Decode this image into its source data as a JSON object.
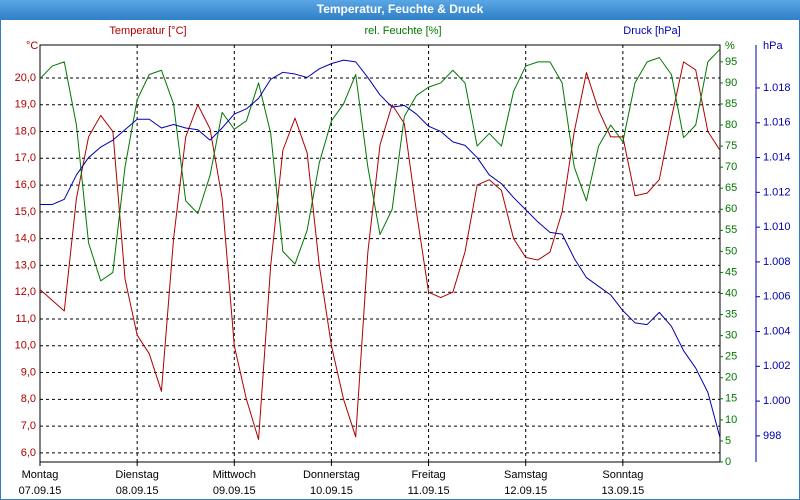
{
  "chart_data": {
    "type": "line",
    "title": "Temperatur, Feuchte & Druck",
    "y_label": "Temperatur [°C]",
    "y_unit": "°C",
    "y2_label": "rel. Feuchte [%]",
    "y2_unit": "%",
    "y3_label": "Druck [hPa]",
    "y3_unit": "hPa",
    "grid": true,
    "xlim": [
      0,
      7
    ],
    "xticks": [
      {
        "value": 0,
        "label": "Montag",
        "sublabel": "07.09.15"
      },
      {
        "value": 1,
        "label": "Dienstag",
        "sublabel": "08.09.15"
      },
      {
        "value": 2,
        "label": "Mittwoch",
        "sublabel": "09.09.15"
      },
      {
        "value": 3,
        "label": "Donnerstag",
        "sublabel": "10.09.15"
      },
      {
        "value": 4,
        "label": "Freitag",
        "sublabel": "11.09.15"
      },
      {
        "value": 5,
        "label": "Samstag",
        "sublabel": "12.09.15"
      },
      {
        "value": 6,
        "label": "Sonntag",
        "sublabel": "13.09.15"
      }
    ],
    "ylim": [
      5.66,
      21.23
    ],
    "yticks": [
      {
        "value": 6,
        "label": "6,0"
      },
      {
        "value": 7,
        "label": "7,0"
      },
      {
        "value": 8,
        "label": "8,0"
      },
      {
        "value": 9,
        "label": "9,0"
      },
      {
        "value": 10,
        "label": "10,0"
      },
      {
        "value": 11,
        "label": "11,0"
      },
      {
        "value": 12,
        "label": "12,0"
      },
      {
        "value": 13,
        "label": "13,0"
      },
      {
        "value": 14,
        "label": "14,0"
      },
      {
        "value": 15,
        "label": "15,0"
      },
      {
        "value": 16,
        "label": "16,0"
      },
      {
        "value": 17,
        "label": "17,0"
      },
      {
        "value": 18,
        "label": "18,0"
      },
      {
        "value": 19,
        "label": "19,0"
      },
      {
        "value": 20,
        "label": "20,0"
      }
    ],
    "y2lim": [
      0,
      99
    ],
    "y2ticks": [
      0,
      5,
      10,
      15,
      20,
      25,
      30,
      35,
      40,
      45,
      50,
      55,
      60,
      65,
      70,
      75,
      80,
      85,
      90,
      95
    ],
    "y3lim": [
      996.5,
      1020.47
    ],
    "y3ticks": [
      998,
      {
        "value": 1000,
        "label": "1.000"
      },
      {
        "value": 1002,
        "label": "1.002"
      },
      {
        "value": 1004,
        "label": "1.004"
      },
      {
        "value": 1006,
        "label": "1.006"
      },
      {
        "value": 1008,
        "label": "1.008"
      },
      {
        "value": 1010,
        "label": "1.010"
      },
      {
        "value": 1012,
        "label": "1.012"
      },
      {
        "value": 1014,
        "label": "1.014"
      },
      {
        "value": 1016,
        "label": "1.016"
      },
      {
        "value": 1018,
        "label": "1.018"
      }
    ],
    "x": [
      0,
      0.125,
      0.25,
      0.375,
      0.5,
      0.625,
      0.75,
      0.875,
      1,
      1.125,
      1.25,
      1.375,
      1.5,
      1.625,
      1.75,
      1.875,
      2,
      2.125,
      2.25,
      2.375,
      2.5,
      2.625,
      2.75,
      2.875,
      3,
      3.125,
      3.25,
      3.375,
      3.5,
      3.625,
      3.75,
      3.875,
      4,
      4.125,
      4.25,
      4.375,
      4.5,
      4.625,
      4.75,
      4.875,
      5,
      5.125,
      5.25,
      5.375,
      5.5,
      5.625,
      5.75,
      5.875,
      6,
      6.125,
      6.25,
      6.375,
      6.5,
      6.625,
      6.75,
      6.875,
      7
    ],
    "series": [
      {
        "name": "Temperatur",
        "color": "#b00000",
        "axis": "y",
        "values": [
          12.1,
          11.7,
          11.3,
          15.5,
          17.8,
          18.6,
          18.0,
          12.5,
          10.4,
          9.7,
          8.3,
          14.0,
          17.8,
          19.0,
          18.1,
          15.5,
          10.0,
          8.0,
          6.5,
          13.0,
          17.3,
          18.5,
          17.2,
          13.0,
          10.0,
          8.0,
          6.6,
          13.5,
          17.5,
          19.0,
          18.3,
          15.0,
          12.0,
          11.8,
          12.0,
          13.5,
          16.0,
          16.2,
          15.8,
          14.0,
          13.3,
          13.2,
          13.5,
          15.0,
          18.0,
          20.2,
          18.8,
          17.8,
          17.8,
          15.6,
          15.7,
          16.2,
          18.5,
          20.6,
          20.3,
          18.0,
          17.3
        ]
      },
      {
        "name": "rel. Feuchte",
        "color": "#007800",
        "axis": "y2",
        "values": [
          91,
          94,
          95,
          80,
          52,
          43,
          45,
          70,
          86,
          92,
          93,
          85,
          62,
          59,
          68,
          83,
          79,
          81,
          90,
          78,
          50,
          47,
          55,
          71,
          81,
          85,
          92,
          70,
          54,
          60,
          82,
          87,
          89,
          90,
          93,
          90,
          75,
          78,
          75,
          88,
          94,
          95,
          95,
          90,
          70,
          62,
          75,
          80,
          76,
          90,
          95,
          96,
          92,
          77,
          80,
          95,
          98
        ]
      },
      {
        "name": "Druck",
        "color": "#0000b0",
        "axis": "y3",
        "values": [
          1011.3,
          1011.3,
          1011.6,
          1013.0,
          1014.0,
          1014.6,
          1015.0,
          1015.6,
          1016.2,
          1016.2,
          1015.7,
          1015.9,
          1015.7,
          1015.6,
          1015.0,
          1015.7,
          1016.5,
          1016.8,
          1017.4,
          1018.5,
          1018.9,
          1018.8,
          1018.6,
          1019.1,
          1019.4,
          1019.6,
          1019.5,
          1018.6,
          1017.6,
          1016.9,
          1017.0,
          1016.5,
          1015.8,
          1015.5,
          1014.9,
          1014.7,
          1014.0,
          1013.0,
          1012.5,
          1011.7,
          1011.0,
          1010.3,
          1009.7,
          1009.6,
          1008.2,
          1007.1,
          1006.6,
          1006.1,
          1005.2,
          1004.5,
          1004.4,
          1005.1,
          1004.3,
          1002.9,
          1001.9,
          1000.5,
          997.9
        ]
      }
    ]
  }
}
